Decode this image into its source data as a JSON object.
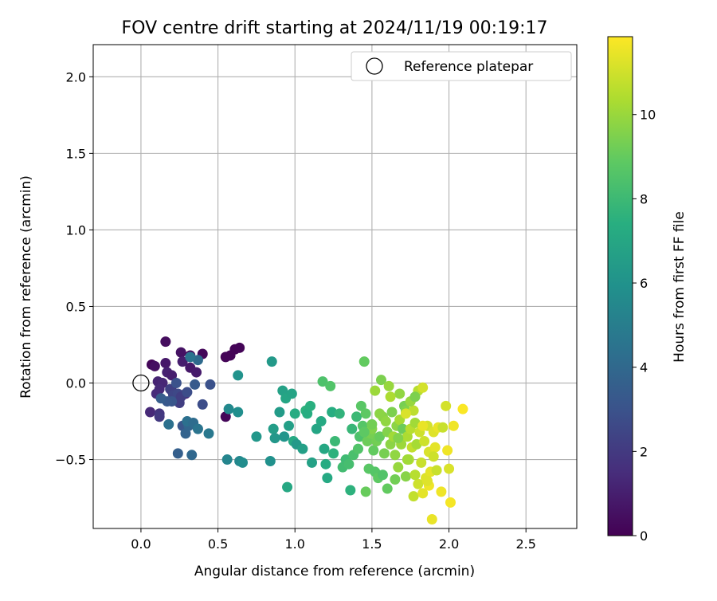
{
  "chart_data": {
    "type": "scatter",
    "title": "FOV centre drift starting at 2024/11/19 00:19:17",
    "xlabel": "Angular distance from reference (arcmin)",
    "ylabel": "Rotation from reference (arcmin)",
    "xlim": [
      -0.31,
      2.83
    ],
    "ylim": [
      -0.95,
      2.21
    ],
    "xticks": [
      0.0,
      0.5,
      1.0,
      1.5,
      2.0,
      2.5
    ],
    "xtick_labels": [
      "0.0",
      "0.5",
      "1.0",
      "1.5",
      "2.0",
      "2.5"
    ],
    "yticks": [
      -0.5,
      0.0,
      0.5,
      1.0,
      1.5,
      2.0
    ],
    "ytick_labels": [
      "−0.5",
      "0.0",
      "0.5",
      "1.0",
      "1.5",
      "2.0"
    ],
    "grid": true,
    "legend": {
      "location": "upper right",
      "entries": [
        "Reference platepar"
      ]
    },
    "reference_point": {
      "label": "Reference platepar",
      "x": 0.0,
      "y": 0.0,
      "marker": "open-circle"
    },
    "colorbar": {
      "label": "Hours from first FF file",
      "colormap": "viridis",
      "range": [
        0,
        11.85
      ],
      "ticks": [
        0,
        2,
        4,
        6,
        8,
        10
      ],
      "tick_labels": [
        "0",
        "2",
        "4",
        "6",
        "8",
        "10"
      ]
    },
    "series": [
      {
        "columns": [
          "x",
          "y",
          "hours"
        ],
        "points": [
          [
            0.07,
            0.12,
            0.2
          ],
          [
            0.09,
            0.11,
            0.5
          ],
          [
            0.16,
            0.27,
            0.4
          ],
          [
            0.26,
            0.2,
            0.6
          ],
          [
            0.32,
            0.18,
            0.3
          ],
          [
            0.4,
            0.19,
            0.2
          ],
          [
            0.55,
            0.17,
            0.1
          ],
          [
            0.58,
            0.18,
            0.1
          ],
          [
            0.61,
            0.22,
            0.1
          ],
          [
            0.64,
            0.23,
            0.1
          ],
          [
            0.16,
            0.13,
            0.8
          ],
          [
            0.27,
            0.14,
            1.0
          ],
          [
            0.32,
            0.1,
            0.8
          ],
          [
            0.36,
            0.07,
            0.9
          ],
          [
            0.17,
            0.07,
            1.1
          ],
          [
            0.2,
            0.05,
            1.0
          ],
          [
            0.11,
            0.01,
            1.2
          ],
          [
            0.14,
            0.0,
            1.3
          ],
          [
            0.12,
            -0.04,
            1.4
          ],
          [
            0.1,
            -0.07,
            1.5
          ],
          [
            0.2,
            -0.05,
            1.6
          ],
          [
            0.29,
            -0.07,
            1.2
          ],
          [
            0.06,
            -0.19,
            1.4
          ],
          [
            0.12,
            -0.2,
            1.9
          ],
          [
            0.12,
            -0.22,
            2.0
          ],
          [
            0.19,
            -0.04,
            2.3
          ],
          [
            0.25,
            -0.13,
            2.2
          ],
          [
            0.21,
            -0.08,
            2.5
          ],
          [
            0.24,
            -0.07,
            2.6
          ],
          [
            0.26,
            -0.09,
            2.2
          ],
          [
            0.3,
            -0.06,
            2.8
          ],
          [
            0.23,
            0.0,
            3.0
          ],
          [
            0.2,
            -0.12,
            3.2
          ],
          [
            0.17,
            -0.12,
            3.3
          ],
          [
            0.13,
            -0.1,
            3.5
          ],
          [
            0.35,
            -0.01,
            3.4
          ],
          [
            0.45,
            -0.01,
            3.0
          ],
          [
            0.4,
            -0.14,
            2.8
          ],
          [
            0.27,
            -0.28,
            3.2
          ],
          [
            0.24,
            -0.46,
            3.6
          ],
          [
            0.29,
            -0.33,
            3.8
          ],
          [
            0.31,
            -0.28,
            3.9
          ],
          [
            0.33,
            -0.47,
            4.0
          ],
          [
            0.3,
            -0.25,
            4.4
          ],
          [
            0.34,
            -0.26,
            4.2
          ],
          [
            0.37,
            -0.3,
            4.6
          ],
          [
            0.44,
            -0.33,
            4.8
          ],
          [
            0.18,
            -0.27,
            4.4
          ],
          [
            0.37,
            0.15,
            4.1
          ],
          [
            0.32,
            0.17,
            4.6
          ],
          [
            0.55,
            -0.22,
            0.2
          ],
          [
            0.56,
            -0.5,
            5.4
          ],
          [
            0.57,
            -0.17,
            5.6
          ],
          [
            0.63,
            -0.19,
            5.9
          ],
          [
            0.63,
            0.05,
            6.1
          ],
          [
            0.64,
            -0.51,
            5.5
          ],
          [
            0.66,
            -0.52,
            5.8
          ],
          [
            0.75,
            -0.35,
            6.3
          ],
          [
            0.84,
            -0.51,
            6.0
          ],
          [
            0.85,
            0.14,
            6.4
          ],
          [
            0.86,
            -0.3,
            6.6
          ],
          [
            0.87,
            -0.36,
            6.3
          ],
          [
            0.9,
            -0.19,
            6.5
          ],
          [
            0.92,
            -0.05,
            6.8
          ],
          [
            0.93,
            -0.35,
            6.2
          ],
          [
            0.94,
            -0.1,
            7.0
          ],
          [
            0.95,
            -0.68,
            7.1
          ],
          [
            0.96,
            -0.28,
            6.7
          ],
          [
            0.98,
            -0.07,
            6.9
          ],
          [
            0.99,
            -0.38,
            7.2
          ],
          [
            1.0,
            -0.2,
            7.3
          ],
          [
            1.01,
            -0.4,
            6.4
          ],
          [
            1.05,
            -0.43,
            6.7
          ],
          [
            1.07,
            -0.18,
            7.6
          ],
          [
            1.08,
            -0.2,
            7.4
          ],
          [
            1.1,
            -0.15,
            7.5
          ],
          [
            1.11,
            -0.52,
            6.8
          ],
          [
            1.14,
            -0.3,
            7.0
          ],
          [
            1.17,
            -0.25,
            7.2
          ],
          [
            1.18,
            0.01,
            8.5
          ],
          [
            1.19,
            -0.43,
            7.1
          ],
          [
            1.2,
            -0.53,
            7.3
          ],
          [
            1.21,
            -0.62,
            7.2
          ],
          [
            1.23,
            -0.02,
            8.6
          ],
          [
            1.24,
            -0.19,
            7.4
          ],
          [
            1.25,
            -0.46,
            7.6
          ],
          [
            1.26,
            -0.38,
            8.0
          ],
          [
            1.29,
            -0.2,
            7.7
          ],
          [
            1.31,
            -0.55,
            8.2
          ],
          [
            1.33,
            -0.5,
            8.1
          ],
          [
            1.35,
            -0.53,
            8.3
          ],
          [
            1.36,
            -0.7,
            7.6
          ],
          [
            1.37,
            -0.3,
            7.9
          ],
          [
            1.38,
            -0.47,
            8.4
          ],
          [
            1.4,
            -0.22,
            8.0
          ],
          [
            1.42,
            -0.35,
            8.5
          ],
          [
            1.43,
            -0.15,
            8.8
          ],
          [
            1.44,
            -0.28,
            8.7
          ],
          [
            1.45,
            0.14,
            9.0
          ],
          [
            1.46,
            -0.2,
            8.9
          ],
          [
            1.47,
            -0.38,
            9.2
          ],
          [
            1.48,
            -0.56,
            8.8
          ],
          [
            1.49,
            -0.33,
            9.4
          ],
          [
            1.5,
            -0.3,
            9.6
          ],
          [
            1.51,
            -0.44,
            9.0
          ],
          [
            1.52,
            -0.58,
            8.7
          ],
          [
            1.53,
            -0.38,
            9.3
          ],
          [
            1.54,
            -0.62,
            8.9
          ],
          [
            1.55,
            -0.35,
            9.1
          ],
          [
            1.56,
            0.02,
            9.5
          ],
          [
            1.57,
            -0.22,
            9.7
          ],
          [
            1.58,
            -0.46,
            9.4
          ],
          [
            1.59,
            -0.25,
            9.9
          ],
          [
            1.6,
            -0.32,
            9.6
          ],
          [
            1.61,
            -0.02,
            10.0
          ],
          [
            1.62,
            -0.4,
            9.8
          ],
          [
            1.63,
            -0.19,
            9.5
          ],
          [
            1.64,
            -0.35,
            10.2
          ],
          [
            1.65,
            -0.47,
            9.9
          ],
          [
            1.66,
            -0.28,
            9.8
          ],
          [
            1.67,
            -0.55,
            10.0
          ],
          [
            1.68,
            -0.24,
            10.3
          ],
          [
            1.69,
            -0.4,
            10.1
          ],
          [
            1.7,
            -0.3,
            9.2
          ],
          [
            1.71,
            -0.15,
            9.4
          ],
          [
            1.72,
            -0.18,
            9.6
          ],
          [
            1.73,
            -0.35,
            10.4
          ],
          [
            1.74,
            -0.5,
            10.5
          ],
          [
            1.75,
            -0.3,
            10.6
          ],
          [
            1.76,
            -0.42,
            10.8
          ],
          [
            1.77,
            -0.18,
            10.7
          ],
          [
            1.78,
            -0.26,
            10.2
          ],
          [
            1.79,
            -0.4,
            10.3
          ],
          [
            1.8,
            -0.05,
            10.6
          ],
          [
            1.81,
            -0.32,
            11.0
          ],
          [
            1.82,
            -0.52,
            10.9
          ],
          [
            1.83,
            -0.03,
            11.1
          ],
          [
            1.84,
            -0.38,
            11.0
          ],
          [
            1.85,
            -0.62,
            11.3
          ],
          [
            1.86,
            -0.28,
            11.1
          ],
          [
            1.87,
            -0.45,
            11.2
          ],
          [
            1.88,
            -0.58,
            11.4
          ],
          [
            1.89,
            -0.89,
            11.5
          ],
          [
            1.9,
            -0.32,
            11.3
          ],
          [
            1.91,
            -0.42,
            11.4
          ],
          [
            1.92,
            -0.57,
            10.9
          ],
          [
            1.93,
            -0.29,
            11.5
          ],
          [
            1.95,
            -0.71,
            11.6
          ],
          [
            1.96,
            -0.29,
            10.9
          ],
          [
            1.98,
            -0.15,
            11.1
          ],
          [
            1.99,
            -0.44,
            11.6
          ],
          [
            2.0,
            -0.56,
            11.2
          ],
          [
            2.01,
            -0.78,
            11.7
          ],
          [
            2.03,
            -0.28,
            11.6
          ],
          [
            2.09,
            -0.17,
            11.8
          ],
          [
            1.57,
            -0.6,
            8.6
          ],
          [
            1.6,
            -0.69,
            9.0
          ],
          [
            1.65,
            -0.63,
            9.3
          ],
          [
            1.72,
            -0.61,
            9.7
          ],
          [
            1.77,
            -0.74,
            10.8
          ],
          [
            1.8,
            -0.66,
            11.0
          ],
          [
            1.83,
            -0.72,
            11.4
          ],
          [
            1.87,
            -0.67,
            11.6
          ],
          [
            1.46,
            -0.71,
            9.1
          ],
          [
            1.68,
            -0.07,
            9.9
          ],
          [
            1.75,
            -0.12,
            10.0
          ],
          [
            1.78,
            -0.09,
            9.5
          ],
          [
            1.52,
            -0.05,
            10.1
          ],
          [
            1.62,
            -0.09,
            10.4
          ],
          [
            1.72,
            -0.2,
            11.2
          ],
          [
            1.83,
            -0.28,
            11.5
          ],
          [
            1.9,
            -0.48,
            11.0
          ],
          [
            1.55,
            -0.2,
            9.8
          ],
          [
            1.5,
            -0.27,
            9.3
          ],
          [
            1.45,
            -0.32,
            8.9
          ],
          [
            1.41,
            -0.43,
            8.6
          ],
          [
            1.67,
            -0.36,
            9.6
          ],
          [
            1.73,
            -0.5,
            10.2
          ],
          [
            1.78,
            -0.6,
            10.6
          ],
          [
            1.86,
            -0.64,
            11.3
          ]
        ]
      }
    ]
  }
}
